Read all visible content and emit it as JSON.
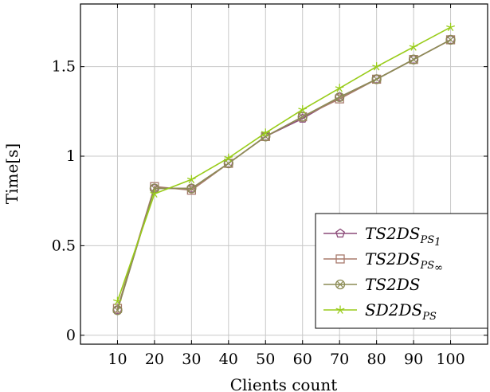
{
  "chart_data": {
    "type": "line",
    "xlabel": "Clients count",
    "ylabel": "Time[s]",
    "x": [
      10,
      20,
      30,
      40,
      50,
      60,
      70,
      80,
      90,
      100
    ],
    "xlim": [
      0,
      110
    ],
    "ylim": [
      -0.05,
      1.85
    ],
    "xticks": [
      "10",
      "20",
      "30",
      "40",
      "50",
      "60",
      "70",
      "80",
      "90",
      "100"
    ],
    "yticks": [
      {
        "value": 0,
        "label": "0"
      },
      {
        "value": 0.5,
        "label": "0.5"
      },
      {
        "value": 1,
        "label": "1"
      },
      {
        "value": 1.5,
        "label": "1.5"
      }
    ],
    "grid": true,
    "legend_position": "bottom-right",
    "series": [
      {
        "name": "TS2DS",
        "name_sub": "PS",
        "name_sub2": "1",
        "color": "#8b4a78",
        "marker": "pentagon",
        "values": [
          0.14,
          0.82,
          0.82,
          0.96,
          1.11,
          1.21,
          1.33,
          1.43,
          1.54,
          1.65
        ]
      },
      {
        "name": "TS2DS",
        "name_sub": "PS",
        "name_sub2": "∞",
        "color": "#a87a6c",
        "marker": "square",
        "values": [
          0.15,
          0.83,
          0.81,
          0.96,
          1.11,
          1.22,
          1.32,
          1.43,
          1.54,
          1.65
        ]
      },
      {
        "name": "TS2DS",
        "name_sub": "",
        "name_sub2": "",
        "color": "#8c8c55",
        "marker": "circle-x",
        "values": [
          0.14,
          0.82,
          0.82,
          0.96,
          1.11,
          1.22,
          1.33,
          1.43,
          1.54,
          1.65
        ]
      },
      {
        "name": "SD2DS",
        "name_sub": "PS",
        "name_sub2": "",
        "color": "#99cc1a",
        "marker": "star",
        "values": [
          0.19,
          0.79,
          0.87,
          0.99,
          1.13,
          1.26,
          1.38,
          1.5,
          1.61,
          1.72
        ]
      }
    ]
  }
}
